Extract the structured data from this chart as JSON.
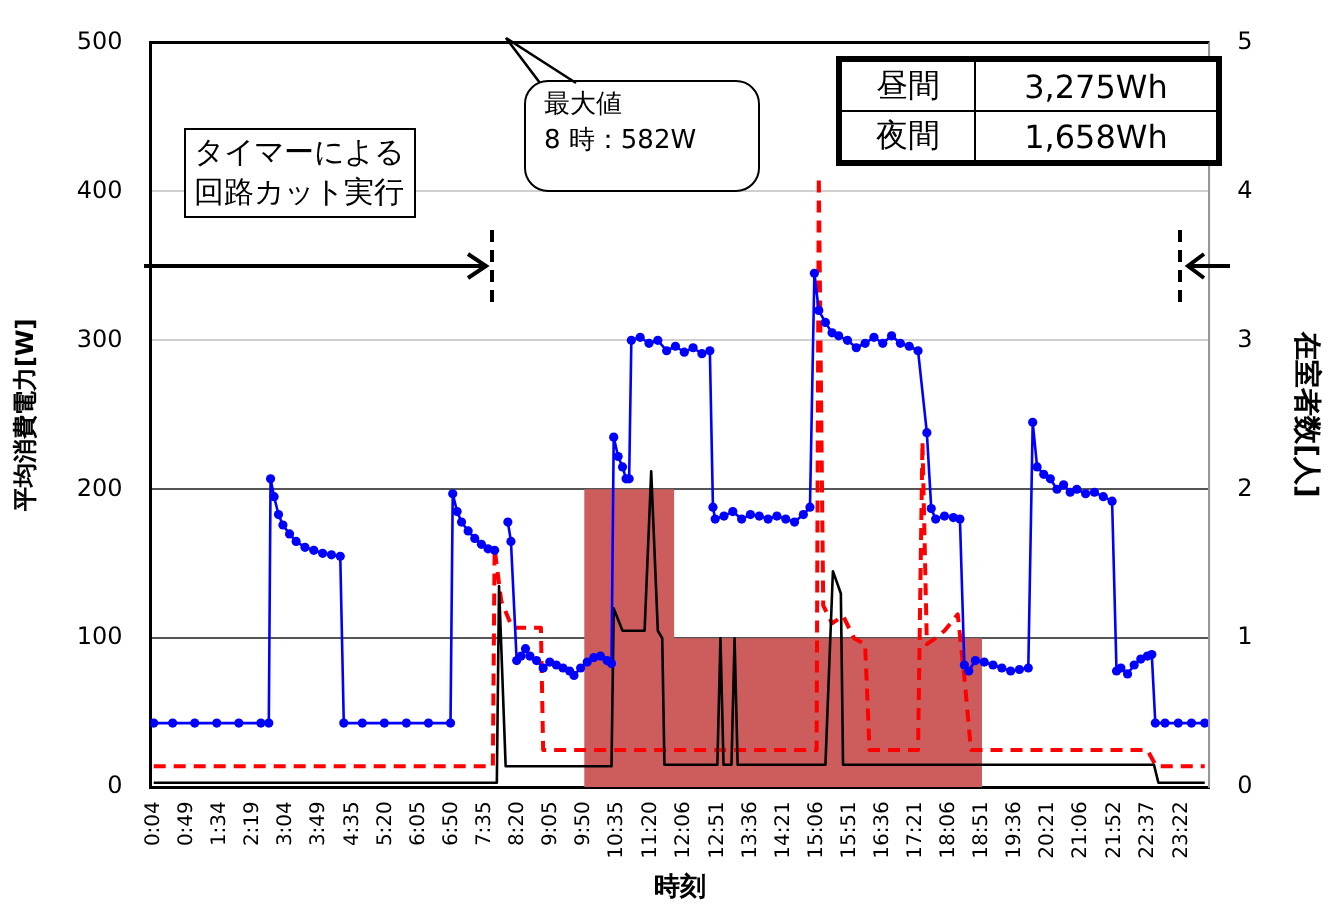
{
  "chart_data": {
    "type": "line",
    "xlabel": "時刻",
    "ylabel": "平均消費電力[W]",
    "y2label": "在室者数[人]",
    "annotations": [
      "タイマーによる回路カット実行",
      "最大値",
      "8 時：582W",
      "昼間",
      "3,275Wh",
      "夜間",
      "1,658Wh"
    ],
    "xlim": [
      0,
      24
    ],
    "xticks": [
      {
        "value": 0.07,
        "label": "0:04"
      },
      {
        "value": 0.82,
        "label": "0:49"
      },
      {
        "value": 1.57,
        "label": "1:34"
      },
      {
        "value": 2.32,
        "label": "2:19"
      },
      {
        "value": 3.07,
        "label": "3:04"
      },
      {
        "value": 3.82,
        "label": "3:49"
      },
      {
        "value": 4.58,
        "label": "4:35"
      },
      {
        "value": 5.33,
        "label": "5:20"
      },
      {
        "value": 6.08,
        "label": "6:05"
      },
      {
        "value": 6.83,
        "label": "6:50"
      },
      {
        "value": 7.58,
        "label": "7:35"
      },
      {
        "value": 8.33,
        "label": "8:20"
      },
      {
        "value": 9.08,
        "label": "9:05"
      },
      {
        "value": 9.83,
        "label": "9:50"
      },
      {
        "value": 10.58,
        "label": "10:35"
      },
      {
        "value": 11.33,
        "label": "11:20"
      },
      {
        "value": 12.1,
        "label": "12:06"
      },
      {
        "value": 12.85,
        "label": "12:51"
      },
      {
        "value": 13.6,
        "label": "13:36"
      },
      {
        "value": 14.35,
        "label": "14:21"
      },
      {
        "value": 15.1,
        "label": "15:06"
      },
      {
        "value": 15.85,
        "label": "15:51"
      },
      {
        "value": 16.6,
        "label": "16:36"
      },
      {
        "value": 17.35,
        "label": "17:21"
      },
      {
        "value": 18.1,
        "label": "18:06"
      },
      {
        "value": 18.85,
        "label": "18:51"
      },
      {
        "value": 19.6,
        "label": "19:36"
      },
      {
        "value": 20.35,
        "label": "20:21"
      },
      {
        "value": 21.1,
        "label": "21:06"
      },
      {
        "value": 21.87,
        "label": "21:52"
      },
      {
        "value": 22.62,
        "label": "22:37"
      },
      {
        "value": 23.37,
        "label": "23:22"
      }
    ],
    "ylim": [
      0,
      500
    ],
    "yticks": [
      0,
      100,
      200,
      300,
      400,
      500
    ],
    "y2lim": [
      0,
      5
    ],
    "y2ticks": [
      0,
      1,
      2,
      3,
      4,
      5
    ],
    "grid": "y",
    "legend": false,
    "series": [
      {
        "type": "area",
        "axis": "y2",
        "color": "#cd5c5c",
        "x": [
          9.83,
          9.83,
          11.87,
          11.87,
          18.85,
          18.85
        ],
        "values": [
          0,
          2,
          2,
          1,
          1,
          0
        ]
      },
      {
        "color": "#ff0000",
        "line_style": "dashed",
        "marker": "none",
        "x": [
          0.07,
          7.76,
          7.8,
          7.95,
          8.2,
          8.85,
          8.9,
          15.1,
          15.15,
          15.25,
          15.45,
          15.7,
          15.95,
          16.2,
          16.3,
          17.4,
          17.5,
          17.6,
          17.8,
          18.0,
          18.3,
          18.45,
          18.6,
          22.6,
          22.8,
          23.9
        ],
        "values": [
          14,
          14,
          160,
          125,
          107,
          107,
          25,
          25,
          410,
          122,
          110,
          115,
          100,
          96,
          25,
          25,
          232,
          96,
          100,
          105,
          116,
          74,
          25,
          25,
          14,
          14
        ]
      },
      {
        "color": "#000000",
        "line_style": "solid",
        "marker": "none",
        "x": [
          0.07,
          7.85,
          7.9,
          8.05,
          10.45,
          10.5,
          10.7,
          11.2,
          11.35,
          11.5,
          11.6,
          11.65,
          12.85,
          12.92,
          12.99,
          13.17,
          13.24,
          13.31,
          15.3,
          15.47,
          15.65,
          15.7,
          22.75,
          22.85,
          23.9
        ],
        "values": [
          3,
          3,
          135,
          14,
          14,
          120,
          105,
          105,
          212,
          105,
          100,
          15,
          15,
          100,
          15,
          15,
          100,
          15,
          15,
          145,
          130,
          15,
          15,
          3,
          3
        ]
      },
      {
        "color": "#0000ff",
        "line_style": "solid",
        "marker": "circle",
        "x": [
          0.07,
          0.5,
          1.0,
          1.5,
          2.0,
          2.5,
          2.68,
          2.72,
          2.8,
          2.9,
          3.0,
          3.15,
          3.3,
          3.5,
          3.7,
          3.9,
          4.1,
          4.3,
          4.38,
          4.8,
          5.3,
          5.8,
          6.3,
          6.8,
          6.85,
          6.95,
          7.05,
          7.2,
          7.35,
          7.5,
          7.65,
          7.8,
          7.95,
          8.1,
          8.17,
          8.3,
          8.4,
          8.5,
          8.6,
          8.75,
          8.9,
          9.05,
          9.2,
          9.35,
          9.5,
          9.6,
          9.75,
          9.9,
          10.05,
          10.2,
          10.35,
          10.45,
          10.5,
          10.6,
          10.7,
          10.78,
          10.85,
          10.9,
          11.1,
          11.3,
          11.5,
          11.7,
          11.9,
          12.1,
          12.3,
          12.5,
          12.68,
          12.75,
          12.8,
          13.0,
          13.2,
          13.4,
          13.6,
          13.8,
          14.0,
          14.2,
          14.4,
          14.6,
          14.8,
          14.95,
          15.05,
          15.15,
          15.3,
          15.45,
          15.6,
          15.8,
          16.0,
          16.2,
          16.4,
          16.6,
          16.8,
          17.0,
          17.2,
          17.4,
          17.6,
          17.7,
          17.8,
          18.0,
          18.2,
          18.35,
          18.45,
          18.55,
          18.7,
          18.9,
          19.1,
          19.3,
          19.5,
          19.7,
          19.9,
          20.0,
          20.1,
          20.25,
          20.4,
          20.55,
          20.7,
          20.85,
          21.0,
          21.2,
          21.4,
          21.6,
          21.8,
          21.9,
          22.0,
          22.15,
          22.3,
          22.45,
          22.6,
          22.7,
          22.78,
          23.0,
          23.3,
          23.6,
          23.9
        ],
        "values": [
          43,
          43,
          43,
          43,
          43,
          43,
          43,
          207,
          195,
          183,
          176,
          170,
          165,
          161,
          159,
          157,
          156,
          155,
          43,
          43,
          43,
          43,
          43,
          43,
          197,
          185,
          178,
          172,
          167,
          163,
          160,
          159,
          null,
          178,
          165,
          85,
          88,
          93,
          88,
          85,
          80,
          84,
          82,
          80,
          78,
          75,
          80,
          84,
          87,
          88,
          85,
          83,
          235,
          222,
          215,
          207,
          207,
          300,
          302,
          298,
          300,
          293,
          296,
          292,
          295,
          291,
          293,
          188,
          180,
          182,
          185,
          180,
          183,
          182,
          180,
          182,
          180,
          178,
          183,
          188,
          345,
          320,
          312,
          305,
          303,
          300,
          295,
          298,
          302,
          298,
          303,
          298,
          296,
          293,
          238,
          187,
          180,
          182,
          181,
          180,
          82,
          78,
          85,
          84,
          82,
          80,
          78,
          79,
          80,
          245,
          215,
          210,
          207,
          200,
          203,
          198,
          200,
          197,
          198,
          195,
          192,
          78,
          80,
          76,
          82,
          86,
          88,
          89,
          43,
          43,
          43,
          43,
          43
        ]
      }
    ]
  }
}
